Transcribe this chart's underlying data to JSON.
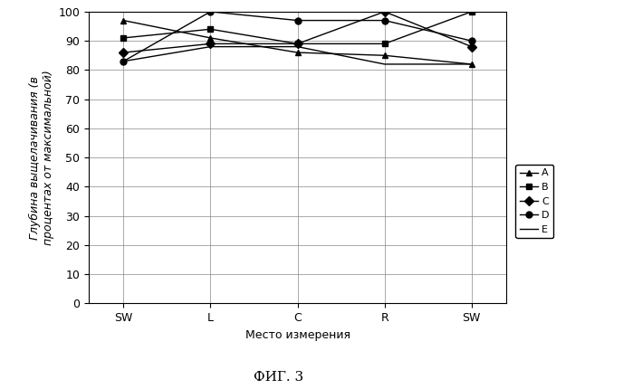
{
  "x_labels": [
    "SW",
    "L",
    "C",
    "R",
    "SW"
  ],
  "series_order": [
    "A",
    "B",
    "C",
    "D",
    "E"
  ],
  "series": {
    "A": {
      "values": [
        97,
        91,
        86,
        85,
        82
      ],
      "marker": "^"
    },
    "B": {
      "values": [
        91,
        94,
        89,
        89,
        100
      ],
      "marker": "s"
    },
    "C": {
      "values": [
        86,
        89,
        89,
        100,
        88
      ],
      "marker": "D"
    },
    "D": {
      "values": [
        83,
        100,
        97,
        97,
        90
      ],
      "marker": "o"
    },
    "E": {
      "values": [
        83,
        88,
        88,
        82,
        82
      ],
      "marker": null
    }
  },
  "ylabel_line1": "Глубина выщелачивания (в",
  "ylabel_line2": "процентах от максимальной)",
  "xlabel": "Место измерения",
  "caption": "ФИГ. 3",
  "ylim": [
    0,
    100
  ],
  "yticks": [
    0,
    10,
    20,
    30,
    40,
    50,
    60,
    70,
    80,
    90,
    100
  ],
  "color": "#000000",
  "linewidth": 1.0,
  "markersize": 5,
  "legend_fontsize": 8,
  "tick_fontsize": 9,
  "label_fontsize": 9,
  "caption_fontsize": 11
}
